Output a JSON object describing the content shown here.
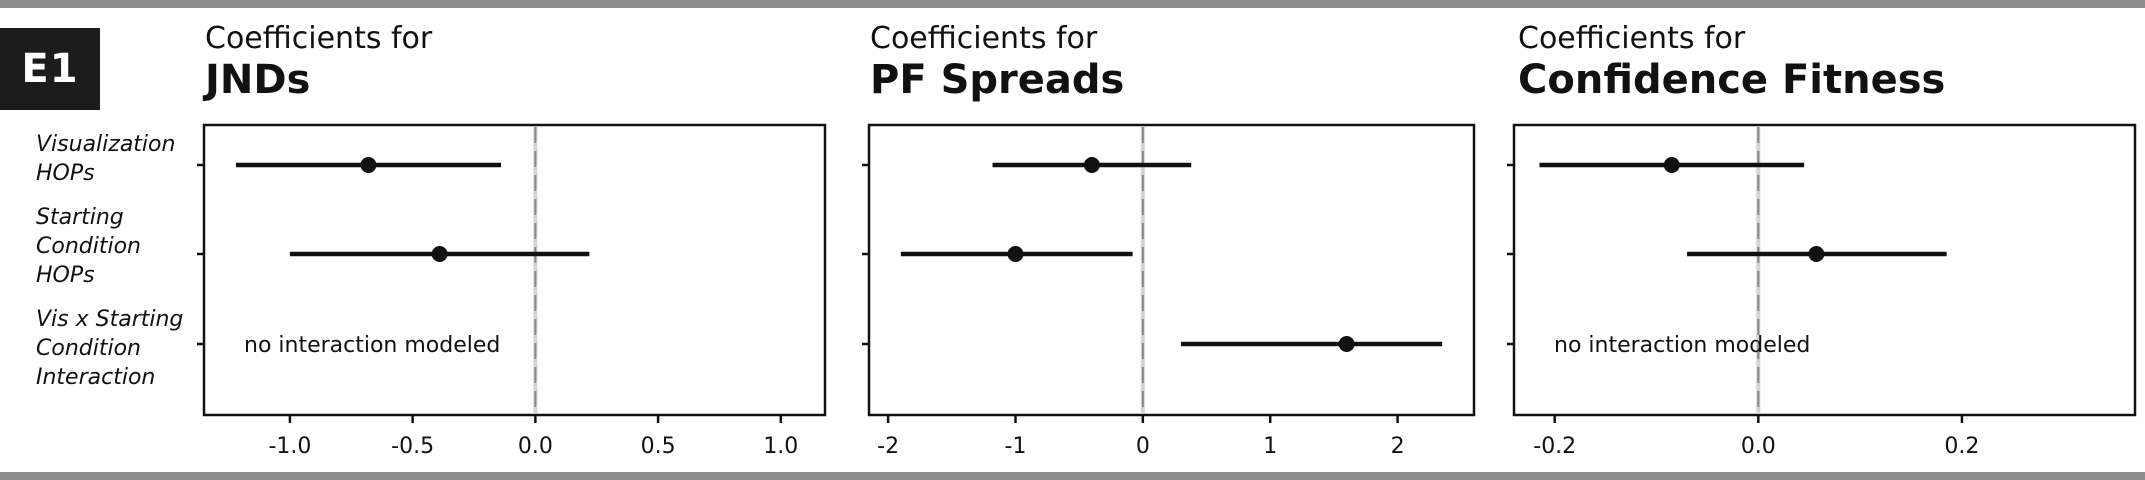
{
  "figure": {
    "badge": "E1",
    "row_labels": [
      [
        "Visualization",
        "HOPs"
      ],
      [
        "Starting",
        "Condition",
        "HOPs"
      ],
      [
        "Vis x Starting",
        "Condition",
        "Interaction"
      ]
    ]
  },
  "panels": [
    {
      "title_prefix": "Coefficients for",
      "title_main": "JNDs",
      "note": "no interaction modeled"
    },
    {
      "title_prefix": "Coefficients for",
      "title_main": "PF Spreads",
      "note": ""
    },
    {
      "title_prefix": "Coefficients for",
      "title_main": "Confidence Fitness",
      "note": "no interaction modeled"
    }
  ],
  "chart_data": [
    {
      "type": "scatter",
      "title": "Coefficients for JNDs",
      "categories": [
        "Visualization HOPs",
        "Starting Condition HOPs",
        "Vis x Starting Condition Interaction"
      ],
      "xlim": [
        -1.35,
        1.18
      ],
      "xticks": [
        -1.0,
        -0.5,
        0.0,
        0.5,
        1.0
      ],
      "xtick_labels": [
        "-1.0",
        "-0.5",
        "0.0",
        "0.5",
        "1.0"
      ],
      "reference_line": 0,
      "points": [
        {
          "category": "Visualization HOPs",
          "estimate": -0.68,
          "low": -1.22,
          "high": -0.14
        },
        {
          "category": "Starting Condition HOPs",
          "estimate": -0.39,
          "low": -1.0,
          "high": 0.22
        }
      ]
    },
    {
      "type": "scatter",
      "title": "Coefficients for PF Spreads",
      "categories": [
        "Visualization HOPs",
        "Starting Condition HOPs",
        "Vis x Starting Condition Interaction"
      ],
      "xlim": [
        -2.15,
        2.6
      ],
      "xticks": [
        -2,
        -1,
        0,
        1,
        2
      ],
      "xtick_labels": [
        "-2",
        "-1",
        "0",
        "1",
        "2"
      ],
      "reference_line": 0,
      "points": [
        {
          "category": "Visualization HOPs",
          "estimate": -0.4,
          "low": -1.18,
          "high": 0.38
        },
        {
          "category": "Starting Condition HOPs",
          "estimate": -1.0,
          "low": -1.9,
          "high": -0.08
        },
        {
          "category": "Vis x Starting Condition Interaction",
          "estimate": 1.6,
          "low": 0.3,
          "high": 2.35
        }
      ]
    },
    {
      "type": "scatter",
      "title": "Coefficients for Confidence Fitness",
      "categories": [
        "Visualization HOPs",
        "Starting Condition HOPs",
        "Vis x Starting Condition Interaction"
      ],
      "xlim": [
        -0.24,
        0.37
      ],
      "xticks": [
        -0.2,
        0.0,
        0.2
      ],
      "xtick_labels": [
        "-0.2",
        "0.0",
        "0.2"
      ],
      "reference_line": 0,
      "points": [
        {
          "category": "Visualization HOPs",
          "estimate": -0.085,
          "low": -0.215,
          "high": 0.045
        },
        {
          "category": "Starting Condition HOPs",
          "estimate": 0.057,
          "low": -0.07,
          "high": 0.185
        }
      ]
    }
  ]
}
